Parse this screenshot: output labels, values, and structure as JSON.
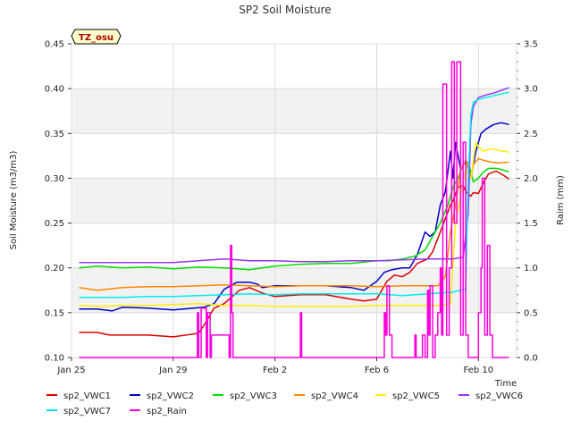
{
  "chart_data": {
    "type": "line",
    "title": "SP2 Soil Moisture",
    "badge": "TZ_osu",
    "xlabel": "Time",
    "ylabel": "Soil Moisture (m3/m3)",
    "y2label": "Raim (mm)",
    "xlim": [
      0,
      17.5
    ],
    "ylim": [
      0.1,
      0.45
    ],
    "y2lim": [
      0.0,
      3.5
    ],
    "x_ticks": [
      {
        "x": 0,
        "label": "Jan 25"
      },
      {
        "x": 4,
        "label": "Jan 29"
      },
      {
        "x": 8,
        "label": "Feb 2"
      },
      {
        "x": 12,
        "label": "Feb 6"
      },
      {
        "x": 16,
        "label": "Feb 10"
      }
    ],
    "y_ticks": [
      "0.10",
      "0.15",
      "0.20",
      "0.25",
      "0.30",
      "0.35",
      "0.40",
      "0.45"
    ],
    "y2_ticks": [
      "0.0",
      "0.5",
      "1.0",
      "1.5",
      "2.0",
      "2.5",
      "3.0",
      "3.5"
    ],
    "series": [
      {
        "name": "sp2_VWC1",
        "color": "#dd0000",
        "axis": "left",
        "x": [
          0.3,
          1,
          1.5,
          2,
          3,
          4,
          4.5,
          5.0,
          5.3,
          5.6,
          6.0,
          6.6,
          7.0,
          7.5,
          8.0,
          9,
          10,
          11,
          11.5,
          12.0,
          12.4,
          12.7,
          13.0,
          13.3,
          13.6,
          14.0,
          14.2,
          14.5,
          14.7,
          14.9,
          15.0,
          15.2,
          15.4,
          15.5,
          15.7,
          15.8,
          16.0,
          16.2,
          16.4,
          16.7,
          17.0,
          17.2
        ],
        "y": [
          0.128,
          0.128,
          0.125,
          0.125,
          0.125,
          0.123,
          0.125,
          0.127,
          0.14,
          0.155,
          0.16,
          0.175,
          0.178,
          0.172,
          0.168,
          0.17,
          0.17,
          0.165,
          0.163,
          0.165,
          0.185,
          0.192,
          0.19,
          0.195,
          0.205,
          0.21,
          0.218,
          0.24,
          0.255,
          0.27,
          0.275,
          0.29,
          0.292,
          0.285,
          0.28,
          0.284,
          0.283,
          0.295,
          0.305,
          0.308,
          0.303,
          0.299
        ]
      },
      {
        "name": "sp2_VWC2",
        "color": "#0000cc",
        "axis": "left",
        "x": [
          0.3,
          1,
          1.6,
          2,
          3,
          4,
          4.8,
          5.2,
          5.6,
          6.0,
          6.5,
          7.0,
          7.3,
          7.5,
          8,
          9,
          10,
          11,
          11.5,
          12.0,
          12.3,
          12.6,
          13.0,
          13.3,
          13.6,
          13.9,
          14.1,
          14.3,
          14.5,
          14.7,
          14.9,
          15.0,
          15.1,
          15.3,
          15.5,
          15.7,
          15.9,
          16.1,
          16.3,
          16.6,
          16.9,
          17.2
        ],
        "y": [
          0.154,
          0.154,
          0.152,
          0.156,
          0.155,
          0.153,
          0.155,
          0.156,
          0.16,
          0.176,
          0.184,
          0.184,
          0.182,
          0.178,
          0.18,
          0.18,
          0.18,
          0.178,
          0.175,
          0.185,
          0.195,
          0.198,
          0.2,
          0.2,
          0.215,
          0.24,
          0.235,
          0.24,
          0.27,
          0.285,
          0.33,
          0.3,
          0.34,
          0.31,
          0.32,
          0.3,
          0.33,
          0.35,
          0.355,
          0.36,
          0.362,
          0.36
        ]
      },
      {
        "name": "sp2_VWC3",
        "color": "#00dd00",
        "axis": "left",
        "x": [
          0.3,
          1,
          2,
          3,
          4,
          5,
          6,
          7,
          8,
          9,
          10,
          11,
          12,
          12.5,
          13.0,
          13.5,
          13.9,
          14.2,
          14.5,
          14.8,
          15.0,
          15.2,
          15.4,
          15.6,
          15.8,
          16.0,
          16.2,
          16.4,
          16.7,
          17.0,
          17.2
        ],
        "y": [
          0.2,
          0.202,
          0.2,
          0.201,
          0.199,
          0.201,
          0.2,
          0.198,
          0.202,
          0.204,
          0.205,
          0.205,
          0.208,
          0.208,
          0.21,
          0.213,
          0.22,
          0.235,
          0.25,
          0.27,
          0.29,
          0.3,
          0.315,
          0.318,
          0.296,
          0.3,
          0.307,
          0.311,
          0.311,
          0.309,
          0.307
        ]
      },
      {
        "name": "sp2_VWC4",
        "color": "#ff8800",
        "axis": "left",
        "x": [
          0.3,
          1,
          2,
          3,
          4,
          5,
          6,
          7,
          8,
          9,
          10,
          11,
          12,
          13,
          13.5,
          14.0,
          14.4,
          14.7,
          14.9,
          15.1,
          15.3,
          15.5,
          15.7,
          15.8,
          16.0,
          16.2,
          16.5,
          16.8,
          17.2
        ],
        "y": [
          0.178,
          0.175,
          0.178,
          0.179,
          0.179,
          0.18,
          0.181,
          0.18,
          0.179,
          0.18,
          0.18,
          0.18,
          0.179,
          0.18,
          0.18,
          0.18,
          0.18,
          0.19,
          0.24,
          0.27,
          0.31,
          0.32,
          0.3,
          0.315,
          0.322,
          0.32,
          0.318,
          0.317,
          0.318
        ]
      },
      {
        "name": "sp2_VWC5",
        "color": "#ffee00",
        "axis": "left",
        "x": [
          0.3,
          1,
          2,
          3,
          4,
          5,
          6,
          7,
          8,
          9,
          10,
          11,
          12,
          13,
          14,
          14.5,
          14.9,
          15.1,
          15.3,
          15.5,
          15.7,
          15.9,
          16.0,
          16.2,
          16.5,
          16.8,
          17.2
        ],
        "y": [
          0.158,
          0.157,
          0.158,
          0.158,
          0.159,
          0.16,
          0.158,
          0.158,
          0.157,
          0.157,
          0.157,
          0.157,
          0.158,
          0.158,
          0.158,
          0.158,
          0.16,
          0.25,
          0.28,
          0.31,
          0.3,
          0.34,
          0.335,
          0.33,
          0.333,
          0.331,
          0.329
        ]
      },
      {
        "name": "sp2_VWC6",
        "color": "#9933ee",
        "axis": "left",
        "x": [
          0.3,
          1,
          2,
          3,
          4,
          5,
          6,
          7,
          8,
          9,
          10,
          11,
          12,
          13,
          14,
          14.5,
          15.0,
          15.4,
          15.6,
          15.7,
          15.8,
          16.0,
          16.3,
          16.6,
          16.9,
          17.2
        ],
        "y": [
          0.206,
          0.206,
          0.206,
          0.206,
          0.206,
          0.208,
          0.21,
          0.208,
          0.208,
          0.207,
          0.207,
          0.208,
          0.208,
          0.209,
          0.21,
          0.21,
          0.21,
          0.212,
          0.26,
          0.36,
          0.38,
          0.39,
          0.393,
          0.395,
          0.398,
          0.401
        ]
      },
      {
        "name": "sp2_VWC7",
        "color": "#00eeee",
        "axis": "left",
        "x": [
          0.3,
          1,
          2,
          3,
          4,
          5,
          6,
          7,
          8,
          9,
          10,
          11,
          12,
          13,
          14,
          14.5,
          15.0,
          15.3,
          15.5,
          15.6,
          15.7,
          15.8,
          16.0,
          16.3,
          16.6,
          16.9,
          17.2
        ],
        "y": [
          0.167,
          0.167,
          0.167,
          0.168,
          0.168,
          0.169,
          0.17,
          0.171,
          0.17,
          0.171,
          0.171,
          0.171,
          0.171,
          0.169,
          0.171,
          0.172,
          0.173,
          0.175,
          0.176,
          0.3,
          0.37,
          0.385,
          0.388,
          0.39,
          0.392,
          0.394,
          0.396
        ]
      },
      {
        "name": "sp2_Rain",
        "color": "#ff00dd",
        "axis": "right",
        "x": [
          0.3,
          4.95,
          4.95,
          5.0,
          5.0,
          5.1,
          5.1,
          5.3,
          5.3,
          5.35,
          5.35,
          5.45,
          5.45,
          5.5,
          5.5,
          6.2,
          6.2,
          6.25,
          6.25,
          6.3,
          6.3,
          6.35,
          6.35,
          9.0,
          9.0,
          9.05,
          9.05,
          12.3,
          12.3,
          12.35,
          12.35,
          12.4,
          12.4,
          12.5,
          12.5,
          12.6,
          12.6,
          12.7,
          12.7,
          13.5,
          13.5,
          13.55,
          13.55,
          13.8,
          13.8,
          13.9,
          13.9,
          14.0,
          14.0,
          14.05,
          14.05,
          14.1,
          14.1,
          14.2,
          14.2,
          14.3,
          14.3,
          14.4,
          14.4,
          14.5,
          14.5,
          14.55,
          14.55,
          14.6,
          14.6,
          14.75,
          14.75,
          14.85,
          14.85,
          14.95,
          14.95,
          15.05,
          15.05,
          15.15,
          15.15,
          15.3,
          15.3,
          15.4,
          15.4,
          15.5,
          15.5,
          15.6,
          15.6,
          16.0,
          16.0,
          16.1,
          16.1,
          16.15,
          16.15,
          16.25,
          16.25,
          16.35,
          16.35,
          16.45,
          16.45,
          16.55,
          16.55,
          16.65,
          16.65,
          17.2
        ],
        "y": [
          0.0,
          0.0,
          0.5,
          0.5,
          0.0,
          0.0,
          0.55,
          0.55,
          0.0,
          0.0,
          0.5,
          0.5,
          0.0,
          0.0,
          0.25,
          0.25,
          0.0,
          0.0,
          1.25,
          1.25,
          0.5,
          0.5,
          0.0,
          0.0,
          0.5,
          0.5,
          0.0,
          0.0,
          0.5,
          0.5,
          0.25,
          0.25,
          0.8,
          0.8,
          0.25,
          0.25,
          0.0,
          0.0,
          0.0,
          0.0,
          0.25,
          0.25,
          0.0,
          0.0,
          0.25,
          0.25,
          0.0,
          0.0,
          0.75,
          0.75,
          0.25,
          0.25,
          0.8,
          0.8,
          0.0,
          0.0,
          0.25,
          0.25,
          0.5,
          0.5,
          1.0,
          1.0,
          0.25,
          0.25,
          3.05,
          3.05,
          0.25,
          0.25,
          1.0,
          1.0,
          3.3,
          3.3,
          1.5,
          1.5,
          3.3,
          3.3,
          0.25,
          0.25,
          2.4,
          2.4,
          0.25,
          0.25,
          0.0,
          0.0,
          0.5,
          0.5,
          1.0,
          1.0,
          2.0,
          2.0,
          0.25,
          0.25,
          1.25,
          1.25,
          0.25,
          0.25,
          0.0,
          0.0,
          0.0,
          0.0
        ]
      }
    ]
  }
}
